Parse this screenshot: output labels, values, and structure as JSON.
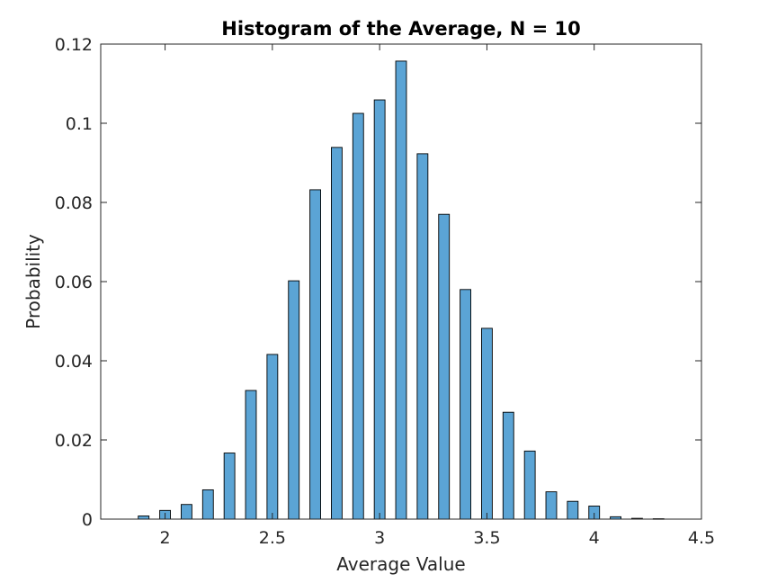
{
  "chart_data": {
    "type": "bar",
    "title": "Histogram of the Average, N = 10",
    "xlabel": "Average Value",
    "ylabel": "Probability",
    "xlim": [
      1.7,
      4.5
    ],
    "ylim": [
      0,
      0.12
    ],
    "xticks": [
      2,
      2.5,
      3,
      3.5,
      4,
      4.5
    ],
    "xtick_labels": [
      "2",
      "2.5",
      "3",
      "3.5",
      "4",
      "4.5"
    ],
    "yticks": [
      0,
      0.02,
      0.04,
      0.06,
      0.08,
      0.1,
      0.12
    ],
    "ytick_labels": [
      "0",
      "0.02",
      "0.04",
      "0.06",
      "0.08",
      "0.1",
      "0.12"
    ],
    "bar_width": 0.05,
    "x": [
      1.9,
      2.0,
      2.1,
      2.2,
      2.3,
      2.4,
      2.5,
      2.6,
      2.7,
      2.8,
      2.9,
      3.0,
      3.1,
      3.2,
      3.3,
      3.4,
      3.5,
      3.6,
      3.7,
      3.8,
      3.9,
      4.0,
      4.1,
      4.2,
      4.3
    ],
    "values": [
      0.0008,
      0.0022,
      0.0037,
      0.0074,
      0.0167,
      0.0325,
      0.0416,
      0.0602,
      0.0832,
      0.0939,
      0.1025,
      0.1059,
      0.1157,
      0.0923,
      0.077,
      0.058,
      0.0482,
      0.027,
      0.0172,
      0.0069,
      0.0045,
      0.0033,
      0.0006,
      0.0002,
      0.0001
    ],
    "grid": false,
    "box": true,
    "colors": {
      "bar_fill": "#5ba4d5",
      "bar_edge": "#000000",
      "axis": "#262626"
    }
  }
}
